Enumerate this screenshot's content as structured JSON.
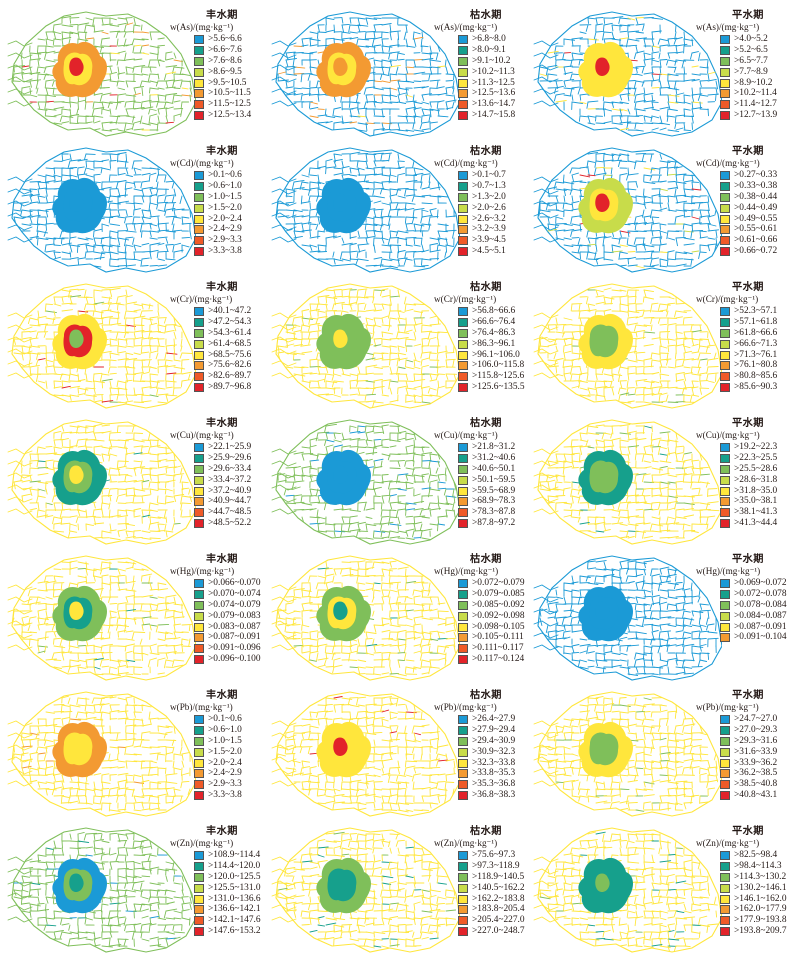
{
  "colors": {
    "blue": "#1b9ad6",
    "teal": "#16a08c",
    "green": "#7fbf5a",
    "yellowgreen": "#c8dc4a",
    "yellow": "#ffe63c",
    "orange": "#f39a32",
    "redorange": "#ef5a28",
    "red": "#e2232a"
  },
  "panels": [
    {
      "period": "丰水期",
      "element": "As",
      "unit": "w(As)/(mg·kg⁻¹)",
      "dominant": "green",
      "core": [
        "yellow",
        "orange",
        "red"
      ],
      "ranges": [
        ">5.6~6.6",
        ">6.6~7.6",
        ">7.6~8.6",
        ">8.6~9.5",
        ">9.5~10.5",
        ">10.5~11.5",
        ">11.5~12.5",
        ">12.5~13.4"
      ]
    },
    {
      "period": "枯水期",
      "element": "As",
      "unit": "w(As)/(mg·kg⁻¹)",
      "dominant": "blue",
      "core": [
        "yellow",
        "orange",
        "orange"
      ],
      "ranges": [
        ">6.8~8.0",
        ">8.0~9.1",
        ">9.1~10.2",
        ">10.2~11.3",
        ">11.3~12.5",
        ">12.5~13.6",
        ">13.6~14.7",
        ">14.7~15.8"
      ]
    },
    {
      "period": "平水期",
      "element": "As",
      "unit": "w(As)/(mg·kg⁻¹)",
      "dominant": "blue",
      "core": [
        "yellow",
        "yellow",
        "red"
      ],
      "ranges": [
        ">4.0~5.2",
        ">5.2~6.5",
        ">6.5~7.7",
        ">7.7~8.9",
        ">8.9~10.2",
        ">10.2~11.4",
        ">11.4~12.7",
        ">12.7~13.9"
      ]
    },
    {
      "period": "丰水期",
      "element": "Cd",
      "unit": "w(Cd)/(mg·kg⁻¹)",
      "dominant": "blue",
      "core": [
        "blue",
        "blue",
        "blue"
      ],
      "ranges": [
        ">0.1~0.6",
        ">0.6~1.0",
        ">1.0~1.5",
        ">1.5~2.0",
        ">2.0~2.4",
        ">2.4~2.9",
        ">2.9~3.3",
        ">3.3~3.8"
      ]
    },
    {
      "period": "枯水期",
      "element": "Cd",
      "unit": "w(Cd)/(mg·kg⁻¹)",
      "dominant": "blue",
      "core": [
        "blue",
        "blue",
        "blue"
      ],
      "ranges": [
        ">0.1~0.7",
        ">0.7~1.3",
        ">1.3~2.0",
        ">2.0~2.6",
        ">2.6~3.2",
        ">3.2~3.9",
        ">3.9~4.5",
        ">4.5~5.1"
      ]
    },
    {
      "period": "平水期",
      "element": "Cd",
      "unit": "w(Cd)/(mg·kg⁻¹)",
      "dominant": "blue",
      "core": [
        "yellow",
        "yellowgreen",
        "red"
      ],
      "ranges": [
        ">0.27~0.33",
        ">0.33~0.38",
        ">0.38~0.44",
        ">0.44~0.49",
        ">0.49~0.55",
        ">0.55~0.61",
        ">0.61~0.66",
        ">0.66~0.72"
      ]
    },
    {
      "period": "丰水期",
      "element": "Cr",
      "unit": "w(Cr)/(mg·kg⁻¹)",
      "dominant": "yellow",
      "core": [
        "red",
        "yellow",
        "green"
      ],
      "ranges": [
        ">40.1~47.2",
        ">47.2~54.3",
        ">54.3~61.4",
        ">61.4~68.5",
        ">68.5~75.6",
        ">75.6~82.6",
        ">82.6~89.7",
        ">89.7~96.8"
      ]
    },
    {
      "period": "枯水期",
      "element": "Cr",
      "unit": "w(Cr)/(mg·kg⁻¹)",
      "dominant": "yellow",
      "core": [
        "green",
        "green",
        "yellow"
      ],
      "ranges": [
        ">56.8~66.6",
        ">66.6~76.4",
        ">76.4~86.3",
        ">86.3~96.1",
        ">96.1~106.0",
        ">106.0~115.8",
        ">115.8~125.6",
        ">125.6~135.5"
      ]
    },
    {
      "period": "平水期",
      "element": "Cr",
      "unit": "w(Cr)/(mg·kg⁻¹)",
      "dominant": "yellow",
      "core": [
        "green",
        "yellow",
        "green"
      ],
      "ranges": [
        ">52.3~57.1",
        ">57.1~61.8",
        ">61.8~66.6",
        ">66.6~71.3",
        ">71.3~76.1",
        ">76.1~80.8",
        ">80.8~85.6",
        ">85.6~90.3"
      ]
    },
    {
      "period": "丰水期",
      "element": "Cu",
      "unit": "w(Cu)/(mg·kg⁻¹)",
      "dominant": "yellow",
      "core": [
        "green",
        "teal",
        "yellow"
      ],
      "ranges": [
        ">22.1~25.9",
        ">25.9~29.6",
        ">29.6~33.4",
        ">33.4~37.2",
        ">37.2~40.9",
        ">40.9~44.7",
        ">44.7~48.5",
        ">48.5~52.2"
      ]
    },
    {
      "period": "枯水期",
      "element": "Cu",
      "unit": "w(Cu)/(mg·kg⁻¹)",
      "dominant": "green",
      "core": [
        "blue",
        "blue",
        "blue"
      ],
      "ranges": [
        ">21.8~31.2",
        ">31.2~40.6",
        ">40.6~50.1",
        ">50.1~59.5",
        ">59.5~68.9",
        ">68.9~78.3",
        ">78.3~87.8",
        ">87.8~97.2"
      ]
    },
    {
      "period": "平水期",
      "element": "Cu",
      "unit": "w(Cu)/(mg·kg⁻¹)",
      "dominant": "yellow",
      "core": [
        "green",
        "teal",
        "green"
      ],
      "ranges": [
        ">19.2~22.3",
        ">22.3~25.5",
        ">25.5~28.6",
        ">28.6~31.8",
        ">31.8~35.0",
        ">35.0~38.1",
        ">38.1~41.3",
        ">41.3~44.4"
      ]
    },
    {
      "period": "丰水期",
      "element": "Hg",
      "unit": "w(Hg)/(mg·kg⁻¹)",
      "dominant": "yellow",
      "core": [
        "teal",
        "green",
        "yellow"
      ],
      "ranges": [
        ">0.066~0.070",
        ">0.070~0.074",
        ">0.074~0.079",
        ">0.079~0.083",
        ">0.083~0.087",
        ">0.087~0.091",
        ">0.091~0.096",
        ">0.096~0.100"
      ]
    },
    {
      "period": "枯水期",
      "element": "Hg",
      "unit": "w(Hg)/(mg·kg⁻¹)",
      "dominant": "yellow",
      "core": [
        "yellow",
        "green",
        "teal"
      ],
      "ranges": [
        ">0.072~0.079",
        ">0.079~0.085",
        ">0.085~0.092",
        ">0.092~0.098",
        ">0.098~0.105",
        ">0.105~0.111",
        ">0.111~0.117",
        ">0.117~0.124"
      ]
    },
    {
      "period": "平水期",
      "element": "Hg",
      "unit": "w(Hg)/(mg·kg⁻¹)",
      "dominant": "blue",
      "core": [
        "blue",
        "blue",
        "blue"
      ],
      "ranges": [
        ">0.069~0.072",
        ">0.072~0.078",
        ">0.078~0.084",
        ">0.084~0.087",
        ">0.087~0.091",
        ">0.091~0.104"
      ]
    },
    {
      "period": "丰水期",
      "element": "Pb",
      "unit": "w(Pb)/(mg·kg⁻¹)",
      "dominant": "yellow",
      "core": [
        "yellow",
        "orange",
        "yellow"
      ],
      "ranges": [
        ">0.1~0.6",
        ">0.6~1.0",
        ">1.0~1.5",
        ">1.5~2.0",
        ">2.0~2.4",
        ">2.4~2.9",
        ">2.9~3.3",
        ">3.3~3.8"
      ]
    },
    {
      "period": "枯水期",
      "element": "Pb",
      "unit": "w(Pb)/(mg·kg⁻¹)",
      "dominant": "yellow",
      "core": [
        "yellow",
        "yellow",
        "red"
      ],
      "ranges": [
        ">26.4~27.9",
        ">27.9~29.4",
        ">29.4~30.9",
        ">30.9~32.3",
        ">32.3~33.8",
        ">33.8~35.3",
        ">35.3~36.8",
        ">36.8~38.3"
      ]
    },
    {
      "period": "平水期",
      "element": "Pb",
      "unit": "w(Pb)/(mg·kg⁻¹)",
      "dominant": "yellow",
      "core": [
        "green",
        "yellow",
        "green"
      ],
      "ranges": [
        ">24.7~27.0",
        ">27.0~29.3",
        ">29.3~31.6",
        ">31.6~33.9",
        ">33.9~36.2",
        ">36.2~38.5",
        ">38.5~40.8",
        ">40.8~43.1"
      ]
    },
    {
      "period": "丰水期",
      "element": "Zn",
      "unit": "w(Zn)/(mg·kg⁻¹)",
      "dominant": "green",
      "core": [
        "green",
        "blue",
        "teal"
      ],
      "ranges": [
        ">108.9~114.4",
        ">114.4~120.0",
        ">120.0~125.5",
        ">125.5~131.0",
        ">131.0~136.6",
        ">136.6~142.1",
        ">142.1~147.6",
        ">147.6~153.2"
      ]
    },
    {
      "period": "枯水期",
      "element": "Zn",
      "unit": "w(Zn)/(mg·kg⁻¹)",
      "dominant": "yellow",
      "core": [
        "teal",
        "green",
        "teal"
      ],
      "ranges": [
        ">75.6~97.3",
        ">97.3~118.9",
        ">118.9~140.5",
        ">140.5~162.2",
        ">162.2~183.8",
        ">183.8~205.4",
        ">205.4~227.0",
        ">227.0~248.7"
      ]
    },
    {
      "period": "平水期",
      "element": "Zn",
      "unit": "w(Zn)/(mg·kg⁻¹)",
      "dominant": "yellow",
      "core": [
        "teal",
        "teal",
        "green"
      ],
      "ranges": [
        ">82.5~98.4",
        ">98.4~114.3",
        ">114.3~130.2",
        ">130.2~146.1",
        ">146.1~162.0",
        ">162.0~177.9",
        ">177.9~193.8",
        ">193.8~209.7"
      ]
    }
  ]
}
